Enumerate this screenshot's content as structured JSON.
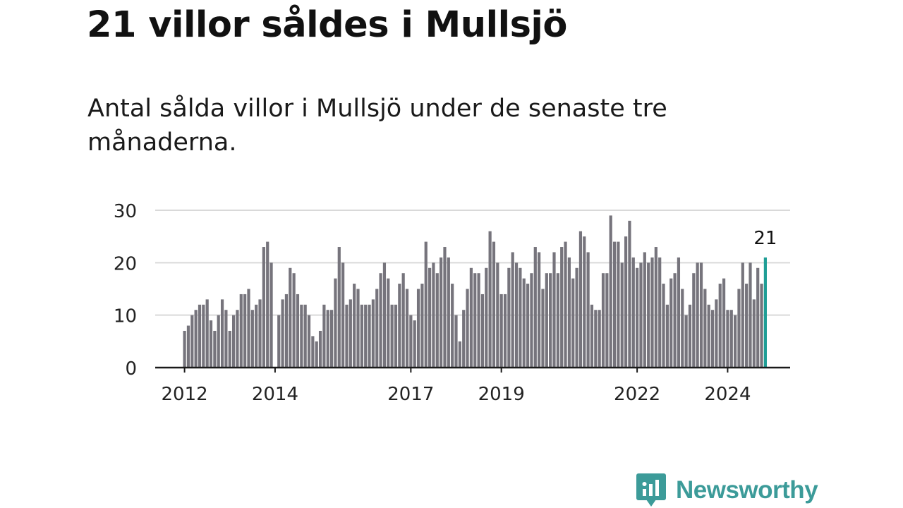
{
  "header": {
    "title": "21 villor såldes i Mullsjö",
    "subtitle": "Antal sålda villor i Mullsjö under de senaste tre månaderna."
  },
  "brand": {
    "name": "Newsworthy",
    "color": "#3c9b99",
    "icon": "newsworthy-logo-icon"
  },
  "chart_data": {
    "type": "bar",
    "title": "",
    "xlabel": "",
    "ylabel": "",
    "ylim": [
      0,
      30
    ],
    "yticks": [
      0,
      10,
      20,
      30
    ],
    "grid": true,
    "legend": "none",
    "start": "2012-01",
    "year_ticks": [
      "2012",
      "2014",
      "2017",
      "2019",
      "2022",
      "2024"
    ],
    "bar_color": "#76747c",
    "highlight_color": "#1f9e96",
    "highlight_label": "21",
    "series": [
      {
        "values": [
          7,
          8,
          10,
          11,
          12,
          12,
          13,
          9,
          7,
          10,
          13,
          11,
          7,
          10,
          11,
          14,
          14,
          15,
          11,
          12,
          13,
          23,
          24,
          20,
          0,
          10,
          13,
          14,
          19,
          18,
          14,
          12,
          12,
          10,
          6,
          5,
          7,
          12,
          11,
          11,
          17,
          23,
          20,
          12,
          13,
          16,
          15,
          12,
          12,
          12,
          13,
          15,
          18,
          20,
          17,
          12,
          12,
          16,
          18,
          15,
          10,
          9,
          15,
          16,
          24,
          19,
          20,
          18,
          21,
          23,
          21,
          16,
          10,
          5,
          11,
          15,
          19,
          18,
          18,
          14,
          19,
          26,
          24,
          20,
          14,
          14,
          19,
          22,
          20,
          19,
          17,
          16,
          18,
          23,
          22,
          15,
          18,
          18,
          22,
          18,
          23,
          24,
          21,
          17,
          19,
          26,
          25,
          22,
          12,
          11,
          11,
          18,
          18,
          29,
          24,
          24,
          20,
          25,
          28,
          21,
          19,
          20,
          22,
          20,
          21,
          23,
          21,
          16,
          12,
          17,
          18,
          21,
          15,
          10,
          12,
          18,
          20,
          20,
          15,
          12,
          11,
          13,
          16,
          17,
          11,
          11,
          10,
          15,
          20,
          16,
          20,
          13,
          19,
          16,
          21
        ]
      }
    ]
  }
}
